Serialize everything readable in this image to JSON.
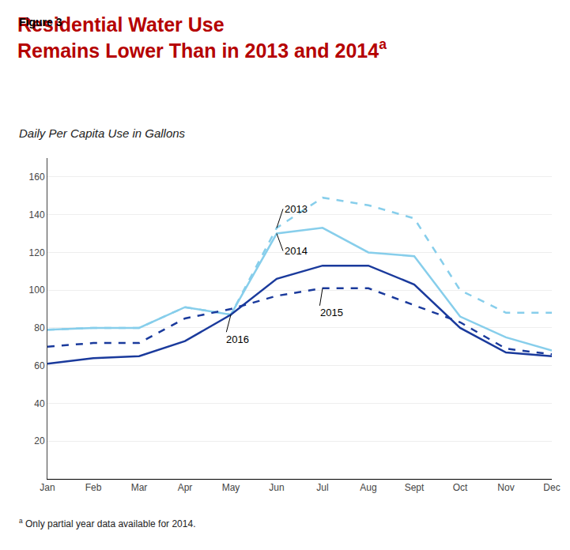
{
  "chart_data": {
    "type": "line",
    "header": "Figure 3",
    "title": [
      "Residential Water Use",
      "Remains Lower Than in 2013 and 2014"
    ],
    "title_mark": "a",
    "title_color": "#b50000",
    "header_color": "#000000",
    "subtitle": "Daily Per Capita Use in Gallons",
    "footnote": {
      "mark": "a",
      "text": " Only partial year data available for 2014."
    },
    "categories": [
      "Jan",
      "Feb",
      "Mar",
      "Apr",
      "May",
      "Jun",
      "Jul",
      "Aug",
      "Sept",
      "Oct",
      "Nov",
      "Dec"
    ],
    "series": [
      {
        "name": "2013",
        "color": "#87CEEB",
        "line_style": "dashed",
        "values": [
          79,
          80,
          80,
          91,
          87,
          133,
          149,
          145,
          138,
          100,
          88,
          88
        ]
      },
      {
        "name": "2014",
        "color": "#87CEEB",
        "line_style": "solid",
        "values": [
          79,
          80,
          80,
          91,
          87,
          130,
          133,
          120,
          118,
          86,
          75,
          68
        ]
      },
      {
        "name": "2015",
        "color": "#1a3a9c",
        "line_style": "dashed",
        "values": [
          70,
          72,
          72,
          85,
          90,
          97,
          101,
          101,
          92,
          83,
          69,
          66
        ]
      },
      {
        "name": "2016",
        "color": "#1a3a9c",
        "line_style": "solid",
        "values": [
          61,
          64,
          65,
          73,
          87,
          106,
          113,
          113,
          103,
          80,
          67,
          65
        ]
      }
    ],
    "annotations": [
      {
        "text": "2013",
        "x": "Jun",
        "y": 133
      },
      {
        "text": "2014",
        "x": "Jun",
        "y": 130
      },
      {
        "text": "2015",
        "x": "Jul",
        "y": 101
      },
      {
        "text": "2016",
        "x": "May",
        "y": 87
      }
    ],
    "ylim": [
      0,
      170
    ],
    "yticks": [
      20,
      40,
      60,
      80,
      100,
      120,
      140,
      160
    ],
    "grid": true,
    "legend": false
  }
}
